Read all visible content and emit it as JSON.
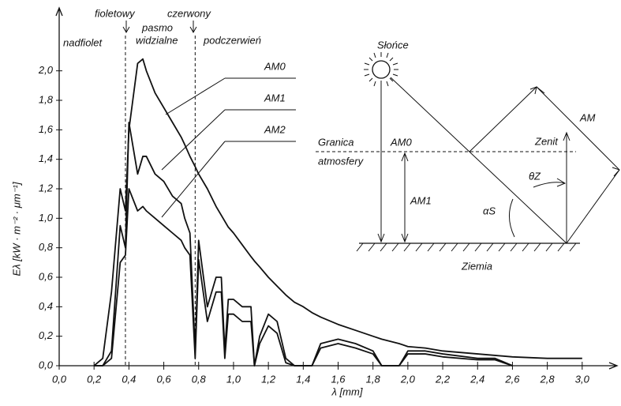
{
  "chart_data": {
    "type": "line",
    "x_label": "λ [mm]",
    "y_label": "Eλ [kW · m⁻² · μm⁻¹]",
    "xlim": [
      0,
      3.2
    ],
    "ylim": [
      0,
      2.4
    ],
    "xticks": [
      {
        "value": 0,
        "label": "0,0"
      },
      {
        "value": 0.2,
        "label": "0,2"
      },
      {
        "value": 0.4,
        "label": "0,4"
      },
      {
        "value": 0.6,
        "label": "0,6"
      },
      {
        "value": 0.8,
        "label": "0,8"
      },
      {
        "value": 1.0,
        "label": "1,0"
      },
      {
        "value": 1.2,
        "label": "1,2"
      },
      {
        "value": 1.4,
        "label": "1,4"
      },
      {
        "value": 1.6,
        "label": "1,6"
      },
      {
        "value": 1.8,
        "label": "1,8"
      },
      {
        "value": 2.0,
        "label": "2,0"
      },
      {
        "value": 2.2,
        "label": "2,2"
      },
      {
        "value": 2.4,
        "label": "2,4"
      },
      {
        "value": 2.6,
        "label": "2,6"
      },
      {
        "value": 2.8,
        "label": "2,8"
      },
      {
        "value": 3.0,
        "label": "3,0"
      }
    ],
    "yticks": [
      {
        "value": 0,
        "label": "0,0"
      },
      {
        "value": 0.2,
        "label": "0,2"
      },
      {
        "value": 0.4,
        "label": "0,4"
      },
      {
        "value": 0.6,
        "label": "0,6"
      },
      {
        "value": 0.8,
        "label": "0,8"
      },
      {
        "value": 1.0,
        "label": "1,0"
      },
      {
        "value": 1.2,
        "label": "1,2"
      },
      {
        "value": 1.4,
        "label": "1,4"
      },
      {
        "value": 1.6,
        "label": "1,6"
      },
      {
        "value": 1.8,
        "label": "1,8"
      },
      {
        "value": 2.0,
        "label": "2,0"
      }
    ],
    "x": [
      0.2,
      0.25,
      0.3,
      0.35,
      0.38,
      0.4,
      0.45,
      0.48,
      0.5,
      0.55,
      0.6,
      0.65,
      0.7,
      0.72,
      0.75,
      0.78,
      0.8,
      0.85,
      0.9,
      0.93,
      0.95,
      0.97,
      1.0,
      1.05,
      1.1,
      1.12,
      1.15,
      1.2,
      1.25,
      1.3,
      1.35,
      1.4,
      1.45,
      1.5,
      1.6,
      1.7,
      1.8,
      1.85,
      1.95,
      2.0,
      2.1,
      2.2,
      2.4,
      2.5,
      2.6,
      2.8,
      3.0
    ],
    "series": [
      {
        "name": "AM0",
        "color": "#111111",
        "values": [
          0.0,
          0.05,
          0.5,
          1.2,
          1.05,
          1.6,
          2.05,
          2.08,
          2.0,
          1.85,
          1.75,
          1.65,
          1.55,
          1.5,
          1.42,
          1.35,
          1.3,
          1.2,
          1.08,
          1.02,
          0.98,
          0.94,
          0.9,
          0.82,
          0.74,
          0.71,
          0.67,
          0.6,
          0.54,
          0.48,
          0.43,
          0.4,
          0.36,
          0.33,
          0.28,
          0.24,
          0.2,
          0.18,
          0.15,
          0.13,
          0.12,
          0.1,
          0.08,
          0.07,
          0.06,
          0.05,
          0.05
        ]
      },
      {
        "name": "AM1",
        "color": "#111111",
        "values": [
          0.0,
          0.0,
          0.1,
          0.95,
          0.8,
          1.65,
          1.3,
          1.42,
          1.42,
          1.3,
          1.25,
          1.15,
          1.1,
          1.0,
          0.9,
          0.1,
          0.85,
          0.4,
          0.6,
          0.6,
          0.1,
          0.45,
          0.45,
          0.4,
          0.4,
          0.0,
          0.2,
          0.35,
          0.3,
          0.05,
          0.0,
          0.0,
          0.0,
          0.15,
          0.18,
          0.15,
          0.1,
          0.0,
          0.0,
          0.1,
          0.1,
          0.08,
          0.05,
          0.05,
          0.0,
          null,
          null
        ]
      },
      {
        "name": "AM2",
        "color": "#111111",
        "values": [
          0.0,
          0.0,
          0.05,
          0.7,
          0.75,
          1.2,
          1.05,
          1.08,
          1.05,
          1.0,
          0.95,
          0.9,
          0.85,
          0.8,
          0.75,
          0.05,
          0.72,
          0.3,
          0.5,
          0.5,
          0.05,
          0.35,
          0.35,
          0.3,
          0.3,
          0.0,
          0.15,
          0.27,
          0.22,
          0.02,
          0.0,
          0.0,
          0.0,
          0.12,
          0.15,
          0.12,
          0.08,
          0.0,
          0.0,
          0.08,
          0.08,
          0.06,
          0.04,
          0.04,
          0.0,
          null,
          null
        ]
      }
    ],
    "band_lines": [
      0.38,
      0.78
    ],
    "band_labels": [
      "nadfiolet",
      "fioletowy",
      "pasmo",
      "widzialne",
      "czerwony",
      "podczerwień"
    ]
  },
  "diagram": {
    "sun": "Słońce",
    "boundary": [
      "Granica",
      "atmosfery"
    ],
    "am0": "AM0",
    "am1": "AM1",
    "am": "AM",
    "zenith": "Zenit",
    "theta": "θZ",
    "alpha": "αS",
    "earth": "Ziemia"
  }
}
